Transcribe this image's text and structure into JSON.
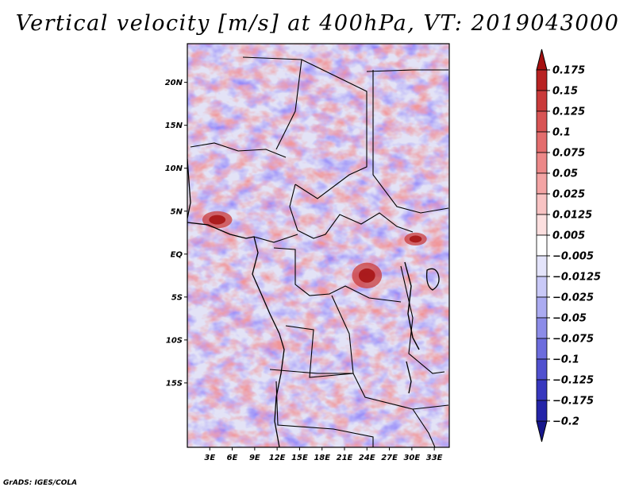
{
  "figure": {
    "title": "Vertical velocity [m/s] at 400hPa, VT: 2019043000",
    "credit": "GrADS: IGES/COLA"
  },
  "map": {
    "lon_range": [
      0,
      35
    ],
    "lat_range": [
      -22.5,
      24.5
    ],
    "y_ticks": [
      {
        "lat": 20,
        "label": "20N"
      },
      {
        "lat": 15,
        "label": "15N"
      },
      {
        "lat": 10,
        "label": "10N"
      },
      {
        "lat": 5,
        "label": "5N"
      },
      {
        "lat": 0,
        "label": "EQ"
      },
      {
        "lat": -5,
        "label": "5S"
      },
      {
        "lat": -10,
        "label": "10S"
      },
      {
        "lat": -15,
        "label": "15S"
      }
    ],
    "x_ticks": [
      {
        "lon": 3,
        "label": "3E"
      },
      {
        "lon": 6,
        "label": "6E"
      },
      {
        "lon": 9,
        "label": "9E"
      },
      {
        "lon": 12,
        "label": "12E"
      },
      {
        "lon": 15,
        "label": "15E"
      },
      {
        "lon": 18,
        "label": "18E"
      },
      {
        "lon": 21,
        "label": "21E"
      },
      {
        "lon": 24,
        "label": "24E"
      },
      {
        "lon": 27,
        "label": "27E"
      },
      {
        "lon": 30,
        "label": "30E"
      },
      {
        "lon": 33,
        "label": "33E"
      }
    ]
  },
  "colorbar": {
    "labels": [
      "0.175",
      "0.15",
      "0.125",
      "0.1",
      "0.075",
      "0.05",
      "0.025",
      "0.0125",
      "0.005",
      "-0.005",
      "-0.0125",
      "-0.025",
      "-0.05",
      "-0.075",
      "-0.1",
      "-0.125",
      "-0.175",
      "-0.2"
    ],
    "colors": [
      "#a51010",
      "#b82222",
      "#c93a3a",
      "#d85454",
      "#e36d6d",
      "#ec8888",
      "#f3a4a4",
      "#f8c3c3",
      "#fcdfdf",
      "#ffffff",
      "#e4e4fb",
      "#c9c9f7",
      "#ababf1",
      "#8c8ce8",
      "#6c6cdd",
      "#5050cf",
      "#3737be",
      "#2424a8",
      "#16168c"
    ]
  },
  "chart_data": {
    "type": "heatmap",
    "title": "Vertical velocity [m/s] at 400hPa, VT: 2019043000",
    "variable": "vertical velocity",
    "units": "m/s",
    "level": "400hPa",
    "valid_time": "2019043000",
    "xlabel": "longitude",
    "ylabel": "latitude",
    "xlim": [
      0,
      35
    ],
    "ylim": [
      -22.5,
      24.5
    ],
    "contour_levels": [
      -0.2,
      -0.175,
      -0.125,
      -0.1,
      -0.075,
      -0.05,
      -0.025,
      -0.0125,
      -0.005,
      0.005,
      0.0125,
      0.025,
      0.05,
      0.075,
      0.1,
      0.125,
      0.15,
      0.175
    ],
    "highlights": [
      {
        "feature": "strong ascent",
        "lon_range": [
          2,
          6
        ],
        "lat_range": [
          3,
          5
        ]
      },
      {
        "feature": "strong ascent",
        "lon_range": [
          22,
          26
        ],
        "lat_range": [
          -4,
          -1
        ]
      },
      {
        "feature": "strong ascent",
        "lon_range": [
          29,
          32
        ],
        "lat_range": [
          1,
          2.5
        ]
      }
    ]
  }
}
